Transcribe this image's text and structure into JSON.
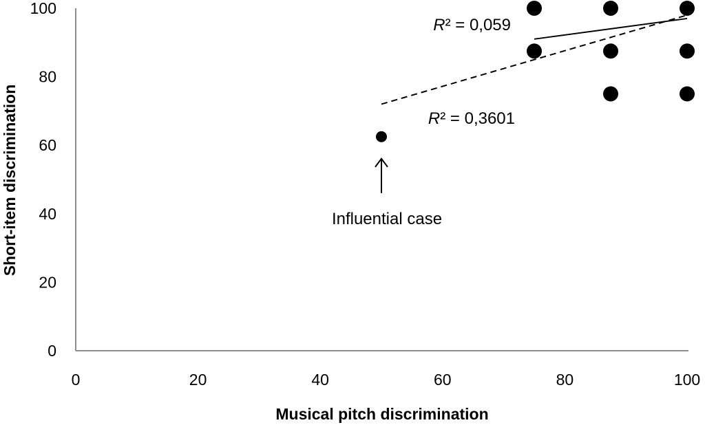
{
  "chart_data": {
    "type": "scatter",
    "xlabel": "Musical pitch discrimination",
    "ylabel": "Short-item discrimination",
    "xlim": [
      0,
      100
    ],
    "ylim": [
      0,
      100
    ],
    "xticks": [
      "0",
      "20",
      "40",
      "60",
      "80",
      "100"
    ],
    "yticks": [
      "0",
      "20",
      "40",
      "60",
      "80",
      "100"
    ],
    "grid": false,
    "legend": "none",
    "point_color": "#000000",
    "points": [
      {
        "x": 50,
        "y": 62.5
      },
      {
        "x": 75,
        "y": 87.5
      },
      {
        "x": 75,
        "y": 100
      },
      {
        "x": 87.5,
        "y": 75
      },
      {
        "x": 87.5,
        "y": 87.5
      },
      {
        "x": 87.5,
        "y": 100
      },
      {
        "x": 100,
        "y": 75
      },
      {
        "x": 100,
        "y": 87.5
      },
      {
        "x": 100,
        "y": 100
      }
    ],
    "trendlines": [
      {
        "style": "solid",
        "x": [
          75,
          100
        ],
        "y": [
          91,
          97
        ],
        "r2_prefix": "R² = ",
        "r2_value": "0,059"
      },
      {
        "style": "dashed",
        "x": [
          50,
          100
        ],
        "y": [
          72,
          98
        ],
        "r2_prefix": "R² = ",
        "r2_value": "0,3601"
      }
    ],
    "annotation": {
      "text": "Influential case",
      "target": {
        "x": 50,
        "y": 62.5
      }
    }
  }
}
